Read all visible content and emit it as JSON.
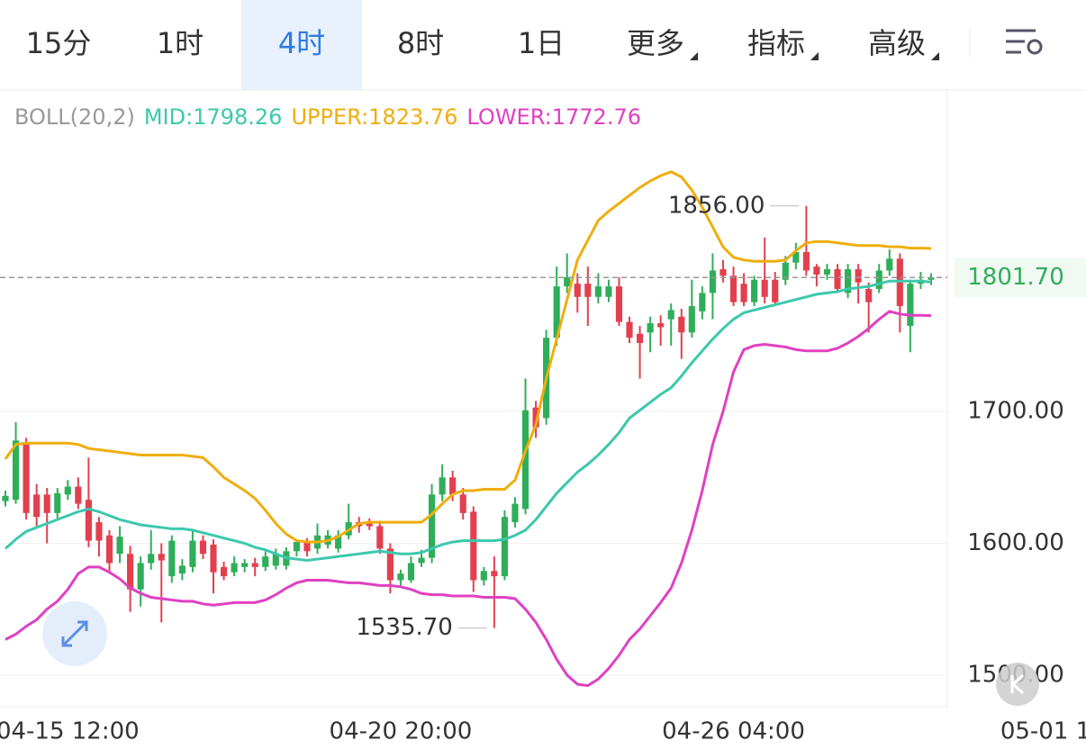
{
  "tabs": [
    {
      "label": "15分"
    },
    {
      "label": "1时"
    },
    {
      "label": "4时",
      "selected": true
    },
    {
      "label": "8时"
    },
    {
      "label": "1日"
    },
    {
      "label": "更多",
      "dropdown": true
    },
    {
      "label": "指标",
      "dropdown": true
    },
    {
      "label": "高级",
      "dropdown": true
    }
  ],
  "chart_data": {
    "type": "candlestick",
    "indicator": "BOLL(20,2)",
    "xlim": [
      -0.52,
      90.56
    ],
    "xticks": [
      {
        "value": 6,
        "label": "04-15 12:00"
      },
      {
        "value": 38,
        "label": "04-20 20:00"
      },
      {
        "value": 70,
        "label": "04-26 04:00"
      },
      {
        "value": 100,
        "label": "05-01 1"
      }
    ],
    "ylim": [
      1476,
      1944
    ],
    "yticks": [
      {
        "value": 1700,
        "label": "1700.00"
      },
      {
        "value": 1600,
        "label": "1600.00"
      },
      {
        "value": 1500,
        "label": "1500.00"
      }
    ],
    "grid": true,
    "up_color": "#2fae5a",
    "down_color": "#e2404f",
    "open": [
      1632,
      1633,
      1675,
      1637,
      1637,
      1623,
      1637,
      1643,
      1633,
      1616,
      1606,
      1592,
      1592,
      1565,
      1585,
      1592,
      1575,
      1577,
      1582,
      1602,
      1599,
      1582,
      1578,
      1582,
      1585,
      1582,
      1583,
      1583,
      1594,
      1601,
      1596,
      1599,
      1596,
      1606,
      1616,
      1616,
      1613,
      1596,
      1572,
      1572,
      1585,
      1589,
      1637,
      1650,
      1637,
      1624,
      1572,
      1579,
      1575,
      1616,
      1626,
      1703,
      1695,
      1756,
      1795,
      1797,
      1797,
      1787,
      1787,
      1795,
      1768,
      1759,
      1760,
      1767,
      1770,
      1772,
      1760,
      1776,
      1790,
      1808,
      1803,
      1797,
      1783,
      1800,
      1800,
      1800,
      1813,
      1821,
      1810,
      1804,
      1808,
      1790,
      1808,
      1793,
      1793,
      1807,
      1816,
      1765,
      1797,
      1800
    ],
    "high": [
      1640,
      1692,
      1680,
      1645,
      1642,
      1642,
      1648,
      1650,
      1665,
      1620,
      1610,
      1613,
      1598,
      1590,
      1610,
      1600,
      1606,
      1588,
      1610,
      1606,
      1603,
      1586,
      1590,
      1588,
      1589,
      1594,
      1596,
      1597,
      1603,
      1604,
      1615,
      1610,
      1610,
      1630,
      1620,
      1619,
      1617,
      1600,
      1580,
      1590,
      1595,
      1645,
      1660,
      1655,
      1642,
      1628,
      1582,
      1590,
      1625,
      1635,
      1725,
      1708,
      1762,
      1810,
      1820,
      1805,
      1810,
      1805,
      1800,
      1802,
      1772,
      1765,
      1772,
      1773,
      1782,
      1778,
      1800,
      1795,
      1820,
      1815,
      1810,
      1805,
      1803,
      1832,
      1806,
      1818,
      1828,
      1856,
      1812,
      1812,
      1812,
      1812,
      1812,
      1798,
      1812,
      1823,
      1820,
      1800,
      1806,
      1805
    ],
    "low": [
      1628,
      1630,
      1618,
      1612,
      1600,
      1618,
      1633,
      1626,
      1597,
      1590,
      1578,
      1585,
      1548,
      1552,
      1580,
      1540,
      1570,
      1572,
      1578,
      1588,
      1562,
      1572,
      1575,
      1578,
      1575,
      1579,
      1580,
      1580,
      1590,
      1590,
      1592,
      1596,
      1593,
      1603,
      1608,
      1610,
      1592,
      1562,
      1568,
      1570,
      1582,
      1585,
      1632,
      1632,
      1618,
      1563,
      1568,
      1535.7,
      1572,
      1612,
      1622,
      1680,
      1690,
      1750,
      1790,
      1775,
      1765,
      1782,
      1783,
      1765,
      1752,
      1725,
      1745,
      1750,
      1750,
      1740,
      1756,
      1770,
      1770,
      1798,
      1780,
      1780,
      1780,
      1782,
      1780,
      1796,
      1808,
      1803,
      1795,
      1800,
      1790,
      1786,
      1782,
      1760,
      1790,
      1803,
      1760,
      1745,
      1793,
      1796
    ],
    "close": [
      1636,
      1678,
      1623,
      1620,
      1623,
      1638,
      1643,
      1630,
      1602,
      1602,
      1585,
      1605,
      1565,
      1585,
      1592,
      1587,
      1602,
      1583,
      1602,
      1592,
      1578,
      1575,
      1585,
      1585,
      1582,
      1590,
      1592,
      1594,
      1601,
      1594,
      1606,
      1606,
      1606,
      1616,
      1613,
      1613,
      1596,
      1572,
      1577,
      1585,
      1589,
      1637,
      1650,
      1637,
      1623,
      1572,
      1579,
      1575,
      1620,
      1630,
      1701,
      1688,
      1756,
      1795,
      1802,
      1787,
      1787,
      1795,
      1795,
      1768,
      1756,
      1752,
      1767,
      1764,
      1777,
      1760,
      1780,
      1790,
      1807,
      1803,
      1783,
      1783,
      1800,
      1787,
      1783,
      1813,
      1821,
      1807,
      1804,
      1808,
      1793,
      1808,
      1798,
      1783,
      1807,
      1816,
      1780,
      1797,
      1800,
      1801.7
    ],
    "series": [
      {
        "name": "MID:",
        "color": "#3cc8ad",
        "values": [
          1596,
          1603,
          1609,
          1612,
          1615,
          1618,
          1621,
          1624,
          1626,
          1624,
          1621,
          1618,
          1616,
          1614,
          1613,
          1612,
          1611,
          1611,
          1610,
          1608,
          1606,
          1604,
          1602,
          1600,
          1597,
          1595,
          1592,
          1589,
          1588,
          1587,
          1588,
          1589,
          1590,
          1591,
          1592,
          1593,
          1594,
          1593,
          1592,
          1592,
          1593,
          1596,
          1599,
          1601,
          1602,
          1602,
          1602,
          1602,
          1603,
          1606,
          1610,
          1618,
          1628,
          1638,
          1646,
          1654,
          1660,
          1667,
          1675,
          1684,
          1695,
          1701,
          1707,
          1713,
          1718,
          1727,
          1737,
          1746,
          1755,
          1763,
          1770,
          1775,
          1777,
          1779,
          1781,
          1783,
          1785,
          1787,
          1789,
          1790,
          1791,
          1793,
          1794,
          1795,
          1797,
          1799,
          1799,
          1799,
          1799,
          1798.26
        ]
      },
      {
        "name": "UPPER:",
        "color": "#efae0e",
        "values": [
          1664,
          1675,
          1676,
          1676,
          1676,
          1676,
          1676,
          1675,
          1672,
          1671,
          1670,
          1669,
          1668,
          1667,
          1667,
          1667,
          1667,
          1667,
          1666,
          1665,
          1658,
          1650,
          1645,
          1640,
          1634,
          1625,
          1615,
          1607,
          1602,
          1601,
          1601,
          1602,
          1605,
          1610,
          1615,
          1616,
          1616,
          1616,
          1616,
          1616,
          1616,
          1622,
          1630,
          1637,
          1640,
          1640,
          1641,
          1641,
          1641,
          1648,
          1670,
          1690,
          1725,
          1755,
          1785,
          1815,
          1830,
          1845,
          1852,
          1858,
          1864,
          1870,
          1875,
          1879,
          1882,
          1878,
          1868,
          1855,
          1840,
          1825,
          1817,
          1815,
          1814,
          1814,
          1814,
          1815,
          1822,
          1828,
          1829,
          1829,
          1828,
          1827,
          1826,
          1826,
          1826,
          1825,
          1825,
          1824,
          1824,
          1823.76
        ]
      },
      {
        "name": "LOWER:",
        "color": "#e040c2",
        "values": [
          1527,
          1531,
          1537,
          1542,
          1550,
          1556,
          1565,
          1577,
          1582,
          1582,
          1578,
          1573,
          1566,
          1562,
          1559,
          1558,
          1557,
          1556,
          1556,
          1554,
          1553,
          1554,
          1555,
          1555,
          1555,
          1557,
          1561,
          1566,
          1570,
          1572,
          1572,
          1572,
          1571,
          1570,
          1570,
          1569,
          1568,
          1568,
          1567,
          1565,
          1562,
          1561,
          1561,
          1560,
          1560,
          1560,
          1559,
          1559,
          1559,
          1558,
          1550,
          1540,
          1527,
          1512,
          1500,
          1493,
          1492,
          1497,
          1505,
          1515,
          1527,
          1535,
          1545,
          1555,
          1566,
          1585,
          1610,
          1640,
          1675,
          1700,
          1730,
          1747,
          1750,
          1751,
          1750,
          1749,
          1747,
          1746,
          1746,
          1746,
          1748,
          1752,
          1757,
          1763,
          1770,
          1776,
          1774,
          1773,
          1773,
          1772.76
        ]
      }
    ],
    "last_price": {
      "value": 1801.7,
      "label": "1801.70"
    },
    "annotations": [
      {
        "index": 77,
        "value": 1856,
        "label": "1856.00"
      },
      {
        "index": 47,
        "value": 1535.7,
        "label": "1535.70"
      }
    ]
  }
}
